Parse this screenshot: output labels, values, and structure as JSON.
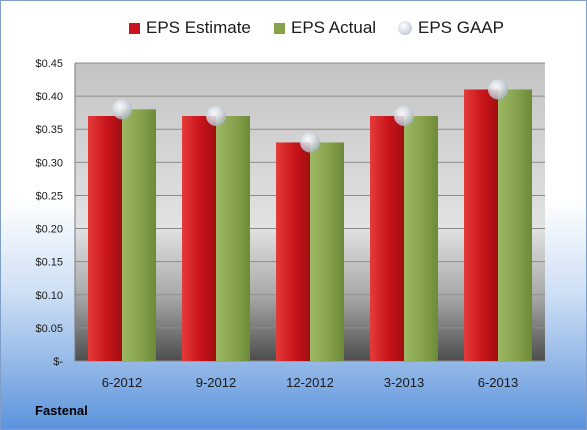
{
  "chart_data": {
    "type": "bar",
    "categories": [
      "6-2012",
      "9-2012",
      "12-2012",
      "3-2013",
      "6-2013"
    ],
    "series": [
      {
        "name": "EPS Estimate",
        "values": [
          0.37,
          0.37,
          0.33,
          0.37,
          0.41
        ],
        "color": "#c8141a"
      },
      {
        "name": "EPS Actual",
        "values": [
          0.38,
          0.37,
          0.33,
          0.37,
          0.41
        ],
        "color": "#86a24c"
      }
    ],
    "markers": {
      "name": "EPS GAAP",
      "values": [
        0.38,
        0.37,
        0.33,
        0.37,
        0.41
      ],
      "color": "#c9d1da"
    },
    "ylim": [
      0,
      0.45
    ],
    "yticks": [
      0,
      0.05,
      0.1,
      0.15,
      0.2,
      0.25,
      0.3,
      0.35,
      0.4,
      0.45
    ],
    "ytick_labels": [
      "$-",
      "$0.05",
      "$0.10",
      "$0.15",
      "$0.20",
      "$0.25",
      "$0.30",
      "$0.35",
      "$0.40",
      "$0.45"
    ],
    "grid": true,
    "legend_position": "top"
  },
  "company": "Fastenal"
}
